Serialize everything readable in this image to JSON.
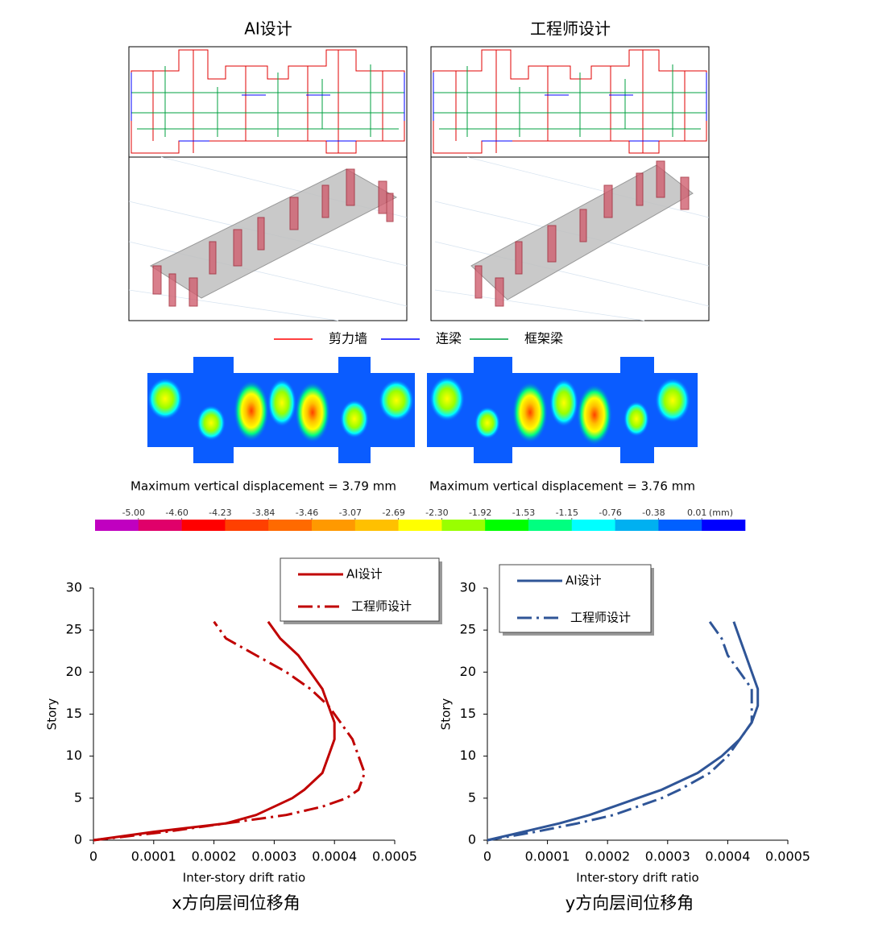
{
  "panels": [
    {
      "title": "AI设计",
      "caption": "Maximum vertical displacement = 3.79 mm"
    },
    {
      "title": "工程师设计",
      "caption": "Maximum vertical displacement = 3.76 mm"
    }
  ],
  "member_legend": [
    {
      "label": "剪力墙",
      "color": "#ff0000"
    },
    {
      "label": "连梁",
      "color": "#0000ff"
    },
    {
      "label": "框架梁",
      "color": "#00a040"
    }
  ],
  "colorbar": {
    "unit": "(mm)",
    "colors": [
      "#c000c0",
      "#e0006a",
      "#ff0000",
      "#ff4000",
      "#ff6a00",
      "#ff9900",
      "#ffc000",
      "#ffff00",
      "#99ff00",
      "#00ff00",
      "#00ff80",
      "#00ffff",
      "#00b0f0",
      "#0060ff",
      "#0000ff"
    ],
    "ticks": [
      {
        "value": -5.0,
        "label": "-5.00"
      },
      {
        "value": -4.6,
        "label": "-4.60"
      },
      {
        "value": -4.23,
        "label": "-4.23"
      },
      {
        "value": -3.84,
        "label": "-3.84"
      },
      {
        "value": -3.46,
        "label": "-3.46"
      },
      {
        "value": -3.07,
        "label": "-3.07"
      },
      {
        "value": -2.69,
        "label": "-2.69"
      },
      {
        "value": -2.3,
        "label": "-2.30"
      },
      {
        "value": -1.92,
        "label": "-1.92"
      },
      {
        "value": -1.53,
        "label": "-1.53"
      },
      {
        "value": -1.15,
        "label": "-1.15"
      },
      {
        "value": -0.76,
        "label": "-0.76"
      },
      {
        "value": -0.38,
        "label": "-0.38"
      },
      {
        "value": 0.01,
        "label": "0.01"
      }
    ]
  },
  "chart_data": [
    {
      "type": "line",
      "title": "x方向层间位移角",
      "xlabel": "Inter-story drift ratio",
      "ylabel": "Story",
      "xlim": [
        0,
        0.0005
      ],
      "xticks": [
        0,
        0.0001,
        0.0002,
        0.0003,
        0.0004,
        0.0005
      ],
      "ylim": [
        0,
        30
      ],
      "yticks": [
        0,
        5,
        10,
        15,
        20,
        25,
        30
      ],
      "series": [
        {
          "name": "AI设计",
          "color": "#c00000",
          "linestyle": "solid",
          "x": [
            0,
            0.0001,
            0.00022,
            0.00027,
            0.0003,
            0.00033,
            0.00035,
            0.00038,
            0.00039,
            0.0004,
            0.0004,
            0.00039,
            0.00038,
            0.00036,
            0.00034,
            0.00031,
            0.00029
          ],
          "values": [
            0,
            1,
            2,
            3,
            4,
            5,
            6,
            8,
            10,
            12,
            14,
            16,
            18,
            20,
            22,
            24,
            26
          ]
        },
        {
          "name": "工程师设计",
          "color": "#c00000",
          "linestyle": "dashdot",
          "x": [
            0,
            0.00012,
            0.00022,
            0.00032,
            0.00038,
            0.00042,
            0.00044,
            0.00045,
            0.00044,
            0.00043,
            0.00041,
            0.00039,
            0.00036,
            0.00032,
            0.00027,
            0.00022,
            0.0002
          ],
          "values": [
            0,
            1,
            2,
            3,
            4,
            5,
            6,
            8,
            10,
            12,
            14,
            16,
            18,
            20,
            22,
            24,
            26
          ]
        }
      ]
    },
    {
      "type": "line",
      "title": "y方向层间位移角",
      "xlabel": "Inter-story drift ratio",
      "ylabel": "Story",
      "xlim": [
        0,
        0.0005
      ],
      "xticks": [
        0,
        0.0001,
        0.0002,
        0.0003,
        0.0004,
        0.0005
      ],
      "ylim": [
        0,
        30
      ],
      "yticks": [
        0,
        5,
        10,
        15,
        20,
        25,
        30
      ],
      "series": [
        {
          "name": "AI设计",
          "color": "#2f5597",
          "linestyle": "solid",
          "x": [
            0,
            6e-05,
            0.00012,
            0.00017,
            0.00021,
            0.00025,
            0.00029,
            0.00035,
            0.00039,
            0.00042,
            0.00044,
            0.00045,
            0.00045,
            0.00044,
            0.00043,
            0.00042,
            0.00041
          ],
          "values": [
            0,
            1,
            2,
            3,
            4,
            5,
            6,
            8,
            10,
            12,
            14,
            16,
            18,
            20,
            22,
            24,
            26
          ]
        },
        {
          "name": "工程师设计",
          "color": "#2f5597",
          "linestyle": "dashdot",
          "x": [
            0,
            8e-05,
            0.00015,
            0.00021,
            0.00025,
            0.00029,
            0.00032,
            0.00037,
            0.0004,
            0.00042,
            0.00044,
            0.00044,
            0.00044,
            0.00042,
            0.0004,
            0.00039,
            0.00037
          ],
          "values": [
            0,
            1,
            2,
            3,
            4,
            5,
            6,
            8,
            10,
            12,
            14,
            16,
            18,
            20,
            22,
            24,
            26
          ]
        }
      ]
    }
  ]
}
